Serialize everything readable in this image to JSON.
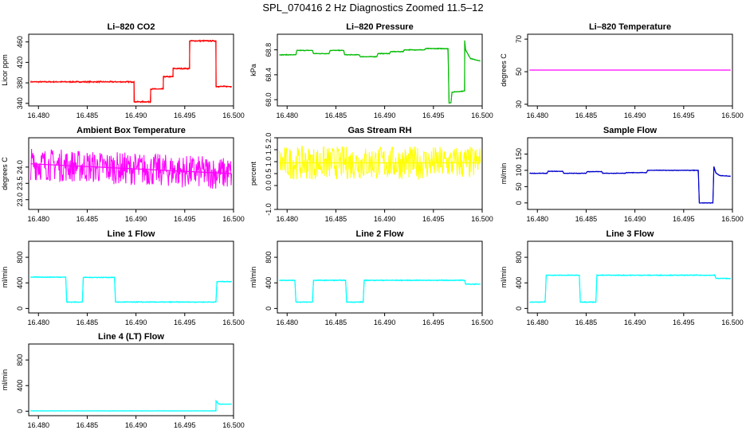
{
  "figure": {
    "title": "SPL_070416  2 Hz Diagnostics Zoomed 11.5–12"
  },
  "colors": {
    "red": "#ff0000",
    "green": "#00bb00",
    "magenta": "#ff00ff",
    "yellow": "#ffff00",
    "blue": "#0000cc",
    "cyan": "#00ffff"
  },
  "chart_data": [
    {
      "type": "line",
      "title": "Li–820 CO2",
      "xlabel": "",
      "ylabel": "Licor ppm",
      "color": "red",
      "xlim": [
        16.479,
        16.5
      ],
      "ylim": [
        335,
        475
      ],
      "xticks": [
        "16.480",
        "16.485",
        "16.490",
        "16.495",
        "16.500"
      ],
      "yticks": [
        340,
        380,
        420,
        460
      ],
      "series": [
        {
          "x": [
            16.4792,
            16.4898,
            16.4898,
            16.4915,
            16.4915,
            16.4928,
            16.4928,
            16.4938,
            16.4938,
            16.4955,
            16.4955,
            16.4982,
            16.4982,
            16.4998
          ],
          "y": [
            382,
            382,
            343,
            343,
            368,
            368,
            392,
            392,
            408,
            408,
            462,
            462,
            373,
            373
          ],
          "noise": 1.5
        }
      ]
    },
    {
      "type": "line",
      "title": "Li–820 Pressure",
      "xlabel": "",
      "ylabel": "kPa",
      "color": "green",
      "xlim": [
        16.479,
        16.5
      ],
      "ylim": [
        67.9,
        69.05
      ],
      "xticks": [
        "16.480",
        "16.485",
        "16.490",
        "16.495",
        "16.500"
      ],
      "yticks": [
        "68.0",
        "68.4",
        "68.8"
      ],
      "series": [
        {
          "x": [
            16.4792,
            16.4809,
            16.481,
            16.4826,
            16.4827,
            16.4843,
            16.4844,
            16.4858,
            16.4859,
            16.4874,
            16.4875,
            16.4892,
            16.4893,
            16.4905,
            16.4906,
            16.4919,
            16.492,
            16.4941,
            16.4942,
            16.4965,
            16.4966,
            16.4968,
            16.4969,
            16.4982,
            16.4982,
            16.4983,
            16.4988,
            16.4998
          ],
          "y": [
            68.72,
            68.72,
            68.79,
            68.79,
            68.74,
            68.74,
            68.79,
            68.79,
            68.72,
            68.72,
            68.69,
            68.69,
            68.74,
            68.74,
            68.77,
            68.77,
            68.8,
            68.8,
            68.82,
            68.82,
            67.95,
            67.95,
            68.12,
            68.14,
            68.95,
            68.8,
            68.66,
            68.62
          ],
          "noise": 0.008
        }
      ]
    },
    {
      "type": "line",
      "title": "Li–820 Temperature",
      "xlabel": "",
      "ylabel": "degrees C",
      "color": "magenta",
      "xlim": [
        16.479,
        16.5
      ],
      "ylim": [
        29,
        73
      ],
      "xticks": [
        "16.480",
        "16.485",
        "16.490",
        "16.495",
        "16.500"
      ],
      "yticks": [
        30,
        50,
        70
      ],
      "series": [
        {
          "x": [
            16.4792,
            16.4998
          ],
          "y": [
            51,
            51
          ],
          "noise": 0
        }
      ]
    },
    {
      "type": "line",
      "title": "Ambient Box Temperature",
      "xlabel": "",
      "ylabel": "degrees C",
      "color": "magenta",
      "xlim": [
        16.479,
        16.5
      ],
      "ylim": [
        22.7,
        24.9
      ],
      "xticks": [
        "16.480",
        "16.485",
        "16.490",
        "16.495",
        "16.500"
      ],
      "yticks": [
        "23.0",
        "23.5",
        "24.0"
      ],
      "series": [
        {
          "x": [
            16.4792,
            16.4998
          ],
          "y": [
            24.1,
            23.8
          ],
          "noise": 0.5
        }
      ]
    },
    {
      "type": "line",
      "title": "Gas Stream RH",
      "xlabel": "",
      "ylabel": "percent",
      "color": "yellow",
      "xlim": [
        16.479,
        16.5
      ],
      "ylim": [
        -1.0,
        2.0
      ],
      "xticks": [
        "16.480",
        "16.485",
        "16.490",
        "16.495",
        "16.500"
      ],
      "yticks": [
        "-1.0",
        "0.0",
        "0.5",
        "1.0",
        "1.5",
        "2.0"
      ],
      "series": [
        {
          "x": [
            16.4792,
            16.4998
          ],
          "y": [
            0.95,
            0.95
          ],
          "noise": 0.7
        }
      ]
    },
    {
      "type": "line",
      "title": "Sample Flow",
      "xlabel": "",
      "ylabel": "ml/min",
      "color": "blue",
      "xlim": [
        16.479,
        16.5
      ],
      "ylim": [
        -20,
        200
      ],
      "xticks": [
        "16.480",
        "16.485",
        "16.490",
        "16.495",
        "16.500"
      ],
      "yticks": [
        0,
        50,
        100,
        150
      ],
      "series": [
        {
          "x": [
            16.4792,
            16.481,
            16.4811,
            16.4826,
            16.4827,
            16.485,
            16.4851,
            16.4866,
            16.4867,
            16.489,
            16.4891,
            16.4912,
            16.4913,
            16.4965,
            16.4966,
            16.498,
            16.4981,
            16.4983,
            16.4987,
            16.4998
          ],
          "y": [
            91,
            91,
            97,
            97,
            91,
            91,
            96,
            96,
            91,
            91,
            93,
            93,
            100,
            100,
            0,
            0,
            112,
            92,
            84,
            82
          ],
          "noise": 1.2
        }
      ]
    },
    {
      "type": "line",
      "title": "Line 1 Flow",
      "xlabel": "",
      "ylabel": "ml/min",
      "color": "cyan",
      "xlim": [
        16.479,
        16.5
      ],
      "ylim": [
        -70,
        1050
      ],
      "xticks": [
        "16.480",
        "16.485",
        "16.490",
        "16.495",
        "16.500"
      ],
      "yticks": [
        0,
        400,
        800
      ],
      "series": [
        {
          "x": [
            16.4792,
            16.4828,
            16.4829,
            16.4845,
            16.4846,
            16.4878,
            16.4879,
            16.4982,
            16.4983,
            16.4998
          ],
          "y": [
            490,
            490,
            100,
            100,
            485,
            485,
            100,
            100,
            420,
            420
          ],
          "noise": 8
        }
      ]
    },
    {
      "type": "line",
      "title": "Line 2 Flow",
      "xlabel": "",
      "ylabel": "ml/min",
      "color": "cyan",
      "xlim": [
        16.479,
        16.5
      ],
      "ylim": [
        -70,
        1050
      ],
      "xticks": [
        "16.480",
        "16.485",
        "16.490",
        "16.495",
        "16.500"
      ],
      "yticks": [
        0,
        400,
        800
      ],
      "series": [
        {
          "x": [
            16.4792,
            16.4808,
            16.4809,
            16.4826,
            16.4827,
            16.486,
            16.4861,
            16.4878,
            16.4879,
            16.4982,
            16.4983,
            16.4998
          ],
          "y": [
            440,
            440,
            100,
            100,
            440,
            440,
            100,
            100,
            440,
            440,
            380,
            380
          ],
          "noise": 8
        }
      ]
    },
    {
      "type": "line",
      "title": "Line 3 Flow",
      "xlabel": "",
      "ylabel": "ml/min",
      "color": "cyan",
      "xlim": [
        16.479,
        16.5
      ],
      "ylim": [
        -70,
        1050
      ],
      "xticks": [
        "16.480",
        "16.485",
        "16.490",
        "16.495",
        "16.500"
      ],
      "yticks": [
        0,
        400,
        800
      ],
      "series": [
        {
          "x": [
            16.4792,
            16.4808,
            16.4809,
            16.4843,
            16.4844,
            16.486,
            16.4861,
            16.4982,
            16.4983,
            16.4998
          ],
          "y": [
            100,
            100,
            520,
            520,
            100,
            100,
            520,
            520,
            470,
            470
          ],
          "noise": 8
        }
      ]
    },
    {
      "type": "line",
      "title": "Line 4 (LT) Flow",
      "xlabel": "",
      "ylabel": "ml/min",
      "color": "cyan",
      "xlim": [
        16.479,
        16.5
      ],
      "ylim": [
        -70,
        1050
      ],
      "xticks": [
        "16.480",
        "16.485",
        "16.490",
        "16.495",
        "16.500"
      ],
      "yticks": [
        0,
        400,
        800
      ],
      "series": [
        {
          "x": [
            16.4792,
            16.4982,
            16.4982,
            16.4985,
            16.4998
          ],
          "y": [
            5,
            5,
            160,
            110,
            110
          ],
          "noise": 3
        }
      ]
    }
  ]
}
